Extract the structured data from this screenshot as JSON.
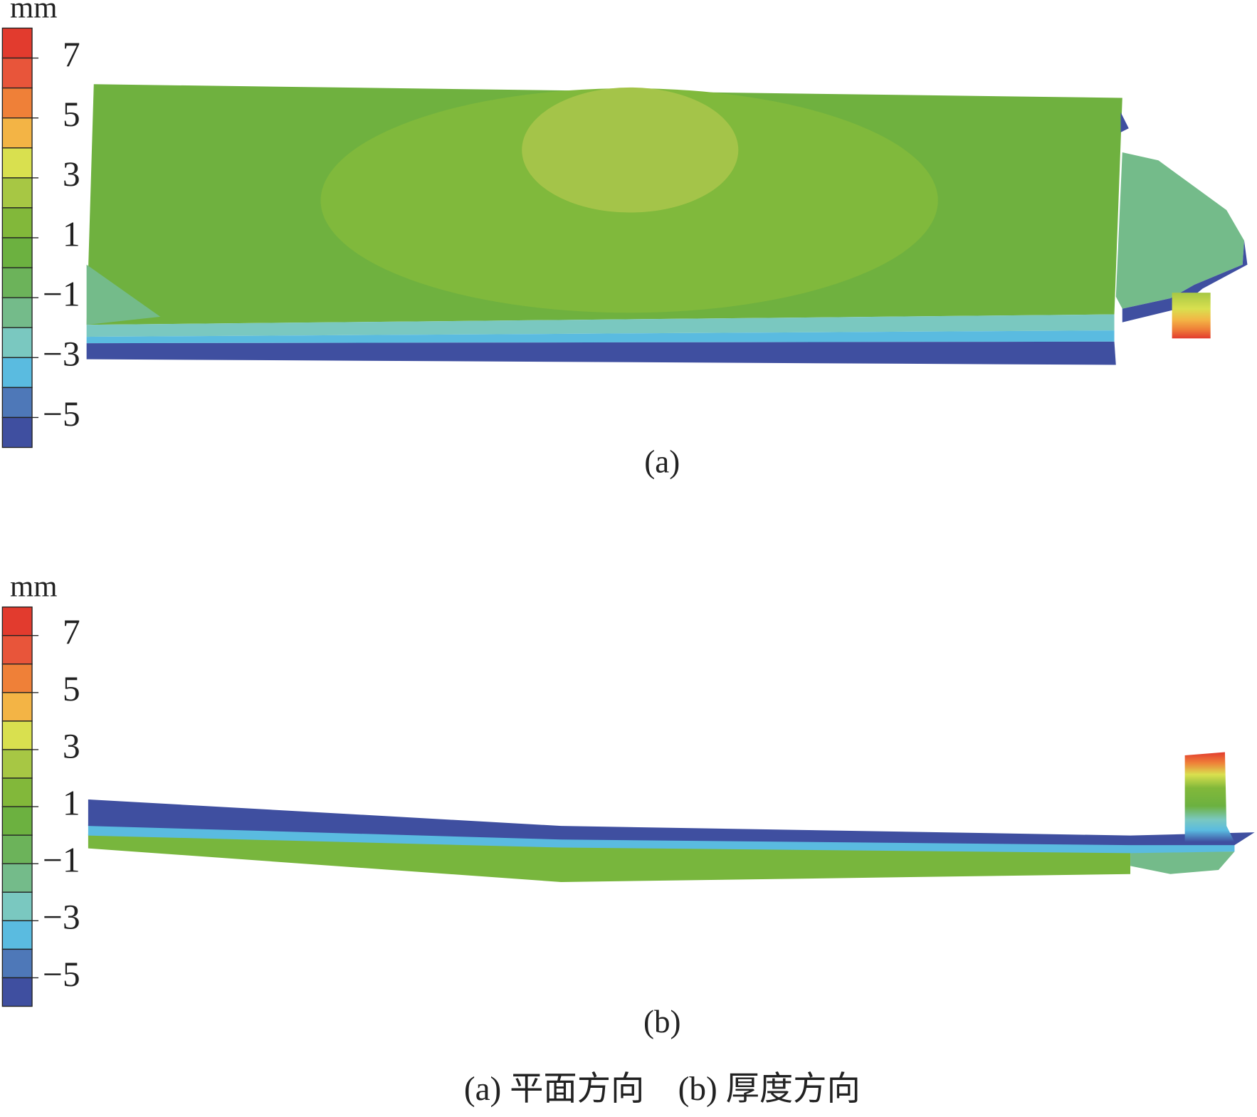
{
  "panels": [
    {
      "unit": "mm",
      "colorbar_labels": [
        "7",
        "5",
        "3",
        "1",
        "−1",
        "−3",
        "−5"
      ],
      "label": "(a)"
    },
    {
      "unit": "mm",
      "colorbar_labels": [
        "7",
        "5",
        "3",
        "1",
        "−1",
        "−3",
        "−5"
      ],
      "label": "(b)"
    }
  ],
  "colorbar_colors": [
    "#e23b2e",
    "#e8553a",
    "#ef8038",
    "#f3b445",
    "#d9e04f",
    "#a7c744",
    "#82b83a",
    "#6cb140",
    "#6cb35a",
    "#74bb8a",
    "#7ac8c0",
    "#5abbe0",
    "#4e78b8",
    "#3f4fa0"
  ],
  "caption": "(a) 平面方向　(b) 厚度方向"
}
